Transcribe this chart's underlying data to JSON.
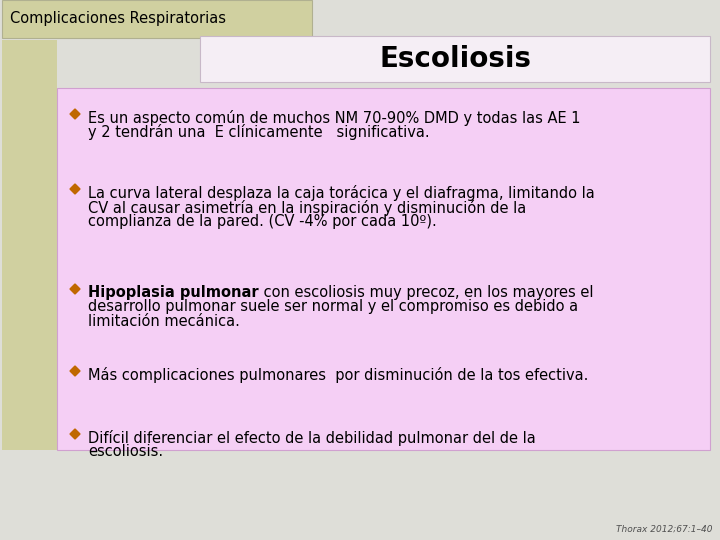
{
  "title": "Escoliosis",
  "header": "Complicaciones Respiratorias",
  "background_color": "#deded8",
  "header_bg": "#d0d0a0",
  "title_box_bg": "#f5eef5",
  "content_bg": "#f5cff5",
  "bullet_color": "#c06800",
  "footer": "Thorax 2012;67:1–40",
  "bullets": [
    {
      "lines": [
        "Es un aspecto común de muchos NM 70-90% DMD y todas las AE 1",
        "y 2 tendrán una  E clínicamente   significativa."
      ],
      "bold_prefix": null,
      "bold_prefix_line": null
    },
    {
      "lines": [
        "La curva lateral desplaza la caja torácica y el diafragma, limitando la",
        "CV al causar asimetría en la inspiración y disminución de la",
        "complianza de la pared. (CV -4% por cada 10º)."
      ],
      "bold_prefix": null,
      "bold_prefix_line": null
    },
    {
      "lines": [
        " con escoliosis muy precoz, en los mayores el",
        "desarrollo pulmonar suele ser normal y el compromiso es debido a",
        "limitación mecánica."
      ],
      "bold_prefix": "Hipoplasia pulmonar",
      "bold_prefix_line": 0
    },
    {
      "lines": [
        "Más complicaciones pulmonares  por disminución de la tos efectiva."
      ],
      "bold_prefix": null,
      "bold_prefix_line": null
    },
    {
      "lines": [
        "Difícil diferenciar el efecto de la debilidad pulmonar del de la",
        "escoliosis."
      ],
      "bold_prefix": null,
      "bold_prefix_line": null
    }
  ]
}
